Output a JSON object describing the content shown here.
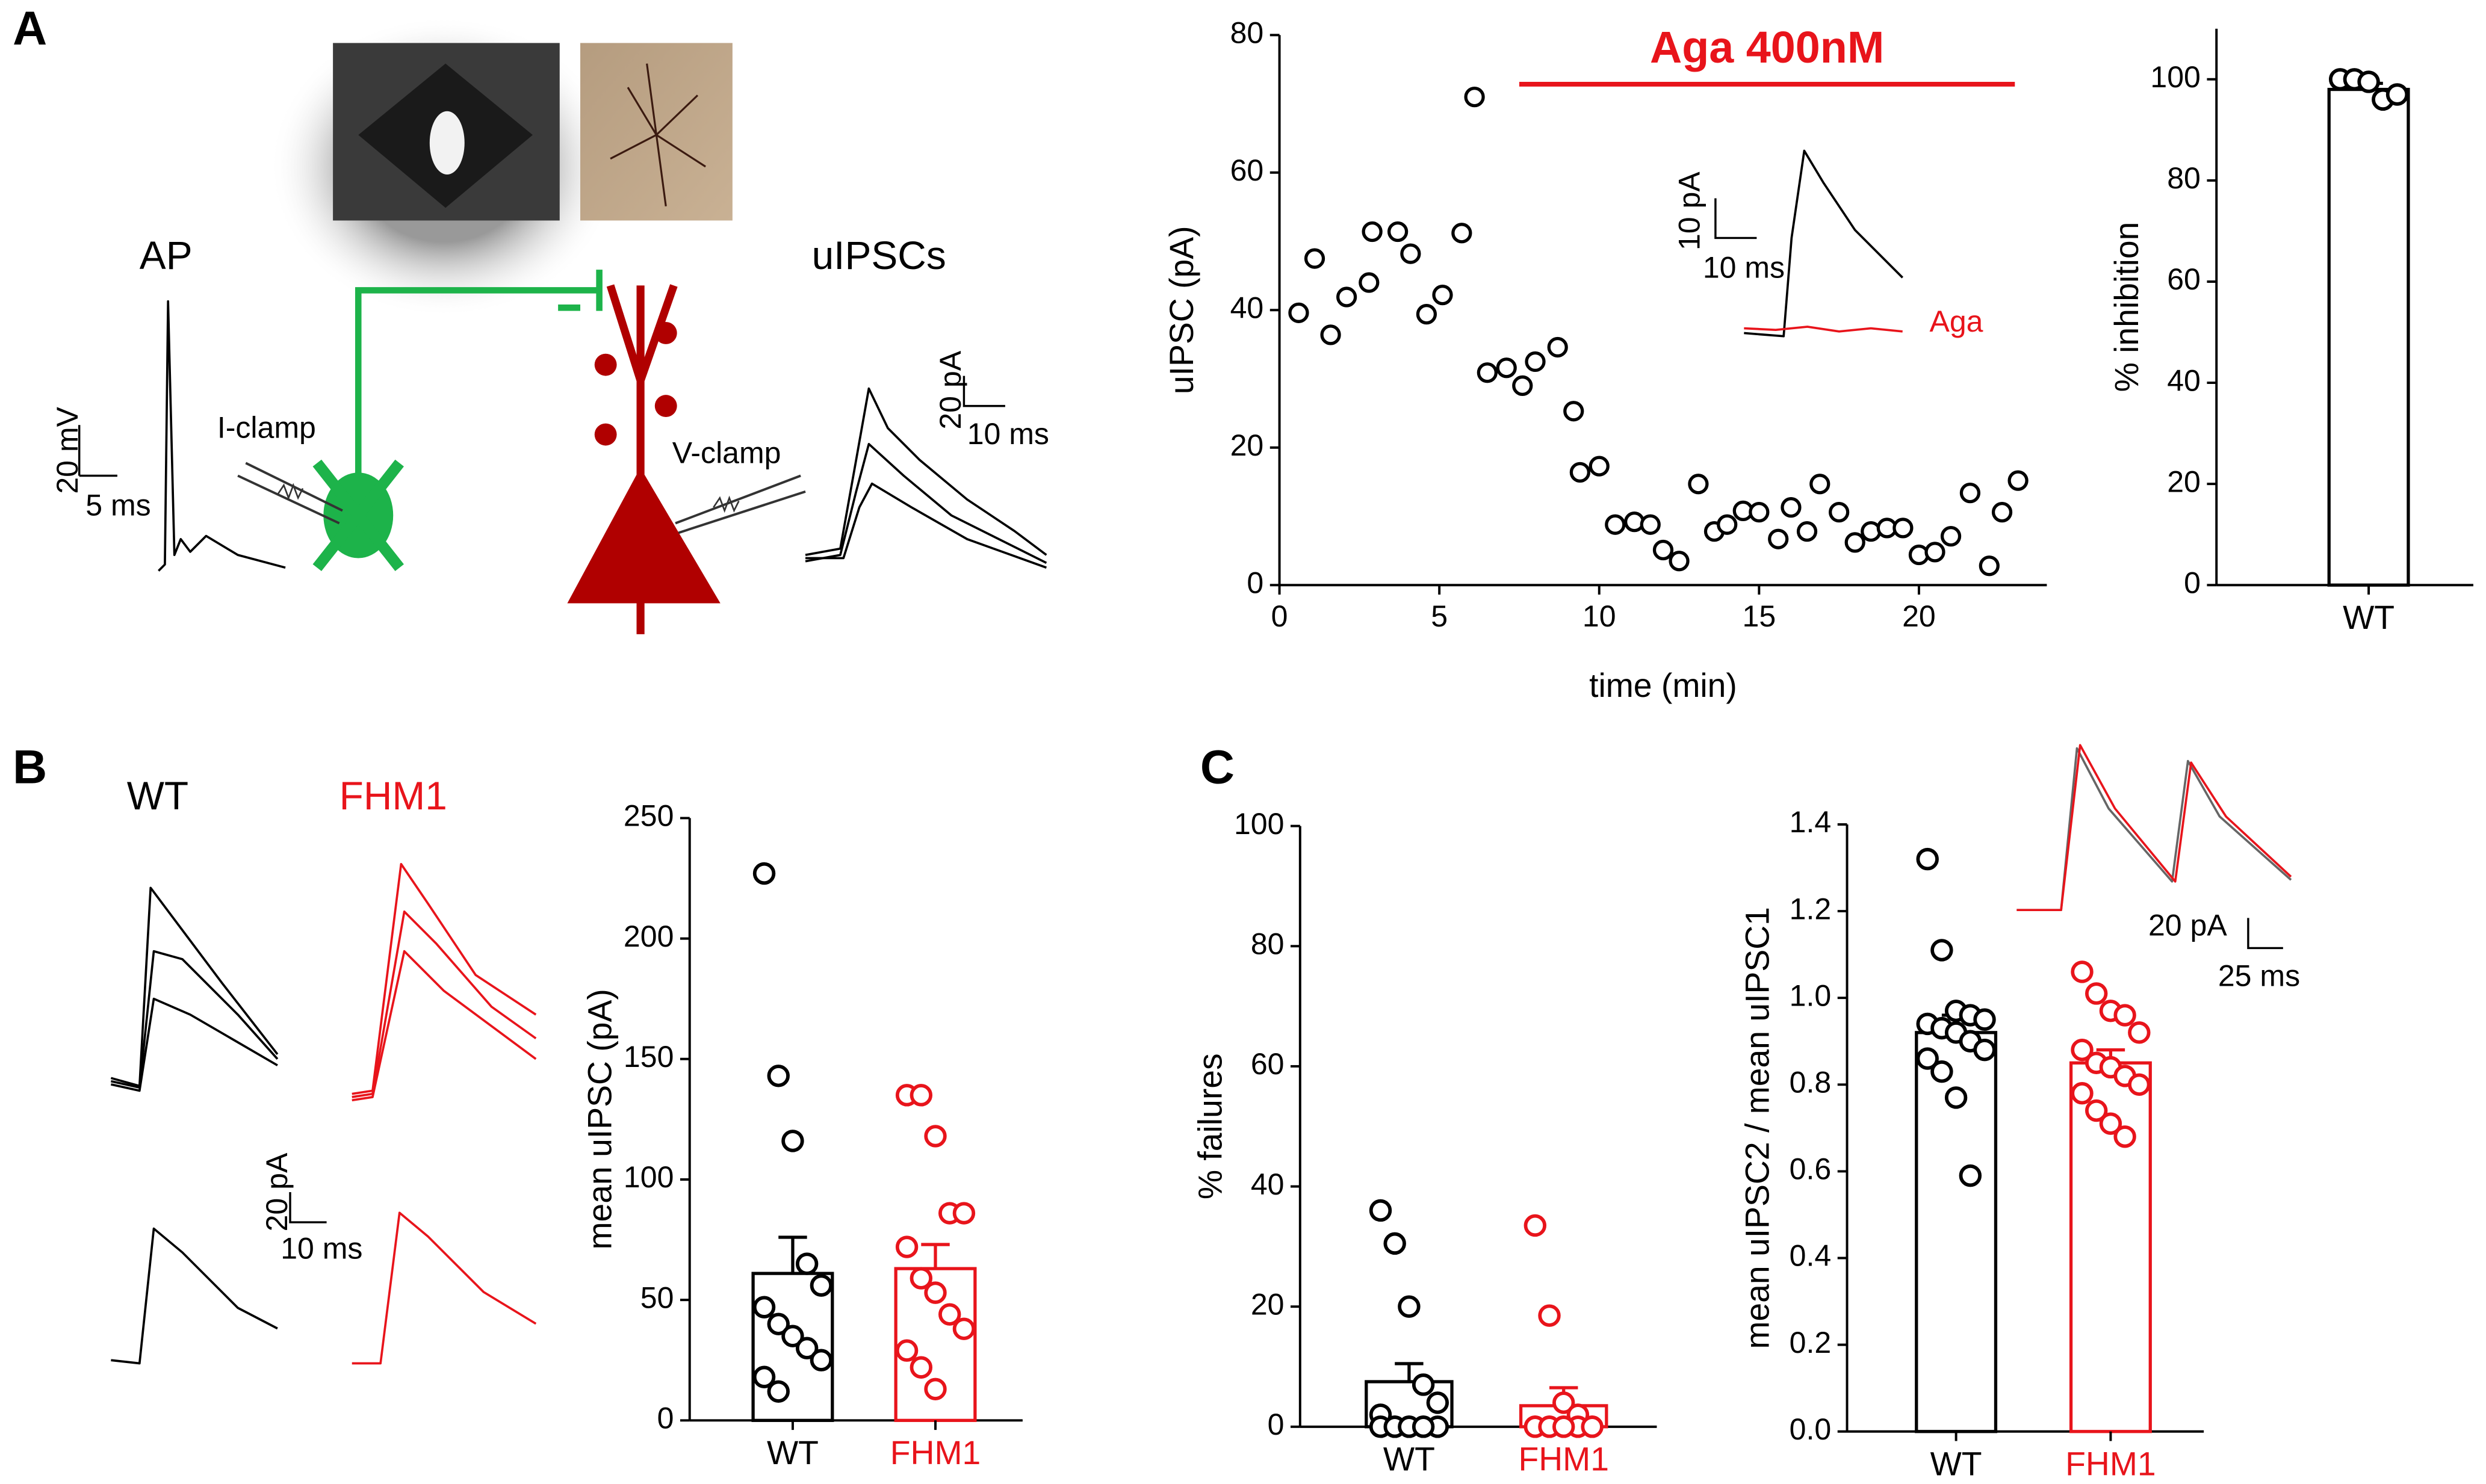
{
  "figure_text": [
    "A",
    "B",
    "C",
    "AP",
    "I-clamp",
    "V-clamp",
    "uIPSCs",
    "20 mV",
    "5 ms",
    "20 pA",
    "10 ms",
    "WT",
    "FHM1",
    "20 pA",
    "10 ms",
    "20 pA",
    "25 ms"
  ],
  "chart_data": [
    {
      "type": "scatter",
      "y_label": "uIPSC (pA)",
      "x_label": "time (min)",
      "annotation": "Aga 400nM",
      "annotation_color": "#e8141b",
      "drug_period": [
        7.5,
        23
      ],
      "inset_labels": [
        "10 pA",
        "10 ms",
        "Aga"
      ],
      "x": [
        0.6,
        1.1,
        1.6,
        2.1,
        2.8,
        2.9,
        3.7,
        4.1,
        4.6,
        5.1,
        5.7,
        6.1,
        6.5,
        7.1,
        7.6,
        8.0,
        8.7,
        9.2,
        9.4,
        10.0,
        10.5,
        11.1,
        11.6,
        12.0,
        12.5,
        13.1,
        13.6,
        14.0,
        14.5,
        15.0,
        15.6,
        16.0,
        16.5,
        16.9,
        17.5,
        18.0,
        18.5,
        19.0,
        19.5,
        20.0,
        20.5,
        21.0,
        21.6,
        22.2,
        22.6,
        23.1
      ],
      "values": [
        39.6,
        47.5,
        36.4,
        41.9,
        44.0,
        51.4,
        51.4,
        48.2,
        39.4,
        42.2,
        51.2,
        71.0,
        30.9,
        31.6,
        29.0,
        32.5,
        34.6,
        25.3,
        16.4,
        17.3,
        8.8,
        9.2,
        8.8,
        5.1,
        3.5,
        14.7,
        7.8,
        8.8,
        10.8,
        10.6,
        6.7,
        11.3,
        7.8,
        14.7,
        10.6,
        6.2,
        7.8,
        8.3,
        8.3,
        4.4,
        4.8,
        7.1,
        13.4,
        2.8,
        10.6,
        15.2
      ],
      "xlim": [
        0,
        24
      ],
      "ylim": [
        0,
        80
      ],
      "xticks": [
        0,
        5,
        10,
        15,
        20
      ],
      "yticks": [
        0,
        20,
        40,
        60,
        80
      ]
    },
    {
      "type": "bar",
      "y_label": "% inhibition",
      "categories": [
        "WT"
      ],
      "colors": [
        "#000000"
      ],
      "values": [
        98
      ],
      "errors": [
        1.2
      ],
      "points": [
        [
          100,
          100,
          99.5,
          96,
          97
        ]
      ],
      "ylim": [
        0,
        110
      ],
      "yticks": [
        0,
        20,
        40,
        60,
        80,
        100
      ]
    },
    {
      "type": "bar",
      "y_label": "mean uIPSC (pA)",
      "categories": [
        "WT",
        "FHM1"
      ],
      "colors": [
        "#000000",
        "#e8141b"
      ],
      "values": [
        61,
        63
      ],
      "errors": [
        15,
        10
      ],
      "points": [
        [
          227,
          143,
          116,
          65,
          56,
          47,
          40,
          35,
          30,
          25,
          18,
          12
        ],
        [
          135,
          135,
          118,
          86,
          86,
          72,
          59,
          53,
          44,
          38,
          29,
          22,
          13
        ]
      ],
      "ylim": [
        0,
        250
      ],
      "yticks": [
        0,
        50,
        100,
        150,
        200,
        250
      ]
    },
    {
      "type": "bar",
      "y_label": "% failures",
      "categories": [
        "WT",
        "FHM1"
      ],
      "colors": [
        "#000000",
        "#e8141b"
      ],
      "values": [
        7.5,
        3.5
      ],
      "errors": [
        3,
        3
      ],
      "points": [
        [
          36,
          30.5,
          20,
          7,
          4,
          2,
          0,
          0,
          0,
          0,
          0,
          0,
          0,
          0
        ],
        [
          33.5,
          18.5,
          4,
          2,
          0,
          0,
          0,
          0,
          0,
          0,
          0,
          0,
          0
        ]
      ],
      "ylim": [
        0,
        100
      ],
      "yticks": [
        0,
        20,
        40,
        60,
        80,
        100
      ]
    },
    {
      "type": "bar",
      "y_label": "mean uIPSC2 / mean uIPSC1",
      "categories": [
        "WT",
        "FHM1"
      ],
      "colors": [
        "#000000",
        "#e8141b"
      ],
      "values": [
        0.92,
        0.85
      ],
      "errors": [
        0.04,
        0.03
      ],
      "points": [
        [
          1.32,
          1.11,
          0.97,
          0.96,
          0.95,
          0.94,
          0.93,
          0.92,
          0.9,
          0.88,
          0.86,
          0.83,
          0.77,
          0.59
        ],
        [
          1.06,
          1.01,
          0.97,
          0.96,
          0.92,
          0.88,
          0.85,
          0.84,
          0.82,
          0.8,
          0.78,
          0.74,
          0.71,
          0.68
        ]
      ],
      "ylim": [
        0,
        1.4
      ],
      "yticks": [
        {
          "value": 0,
          "label": "0.0"
        },
        0.2,
        0.4,
        0.6,
        0.8,
        {
          "value": 1,
          "label": "1.0"
        },
        1.2,
        1.4
      ]
    }
  ]
}
